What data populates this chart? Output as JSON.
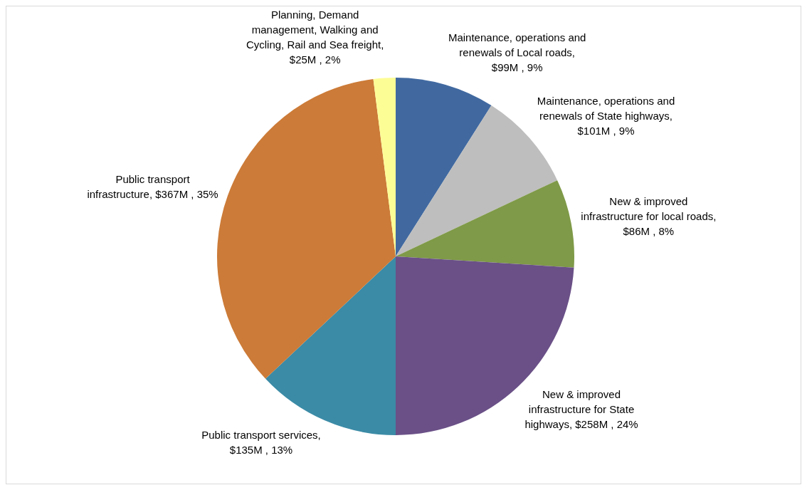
{
  "chart_data": {
    "type": "pie",
    "categories": [
      "Maintenance, operations and renewals of Local roads, $99M , 9%",
      "Maintenance, operations and renewals of State highways, $101M , 9%",
      "New & improved infrastructure for local roads, $86M , 8%",
      "New & improved infrastructure for State highways, $258M , 24%",
      "Public transport services, $135M , 13%",
      "Public transport infrastructure, $367M , 35%",
      "Planning, Demand management, Walking and Cycling, Rail and Sea freight, $25M , 2%"
    ],
    "values": [
      9,
      9,
      8,
      24,
      13,
      35,
      2
    ],
    "colors": [
      "#4169a0",
      "#bebebe",
      "#7f9a48",
      "#6a5087",
      "#3b8ba6",
      "#cc7b38",
      "#fdfd96"
    ],
    "legend": false
  }
}
